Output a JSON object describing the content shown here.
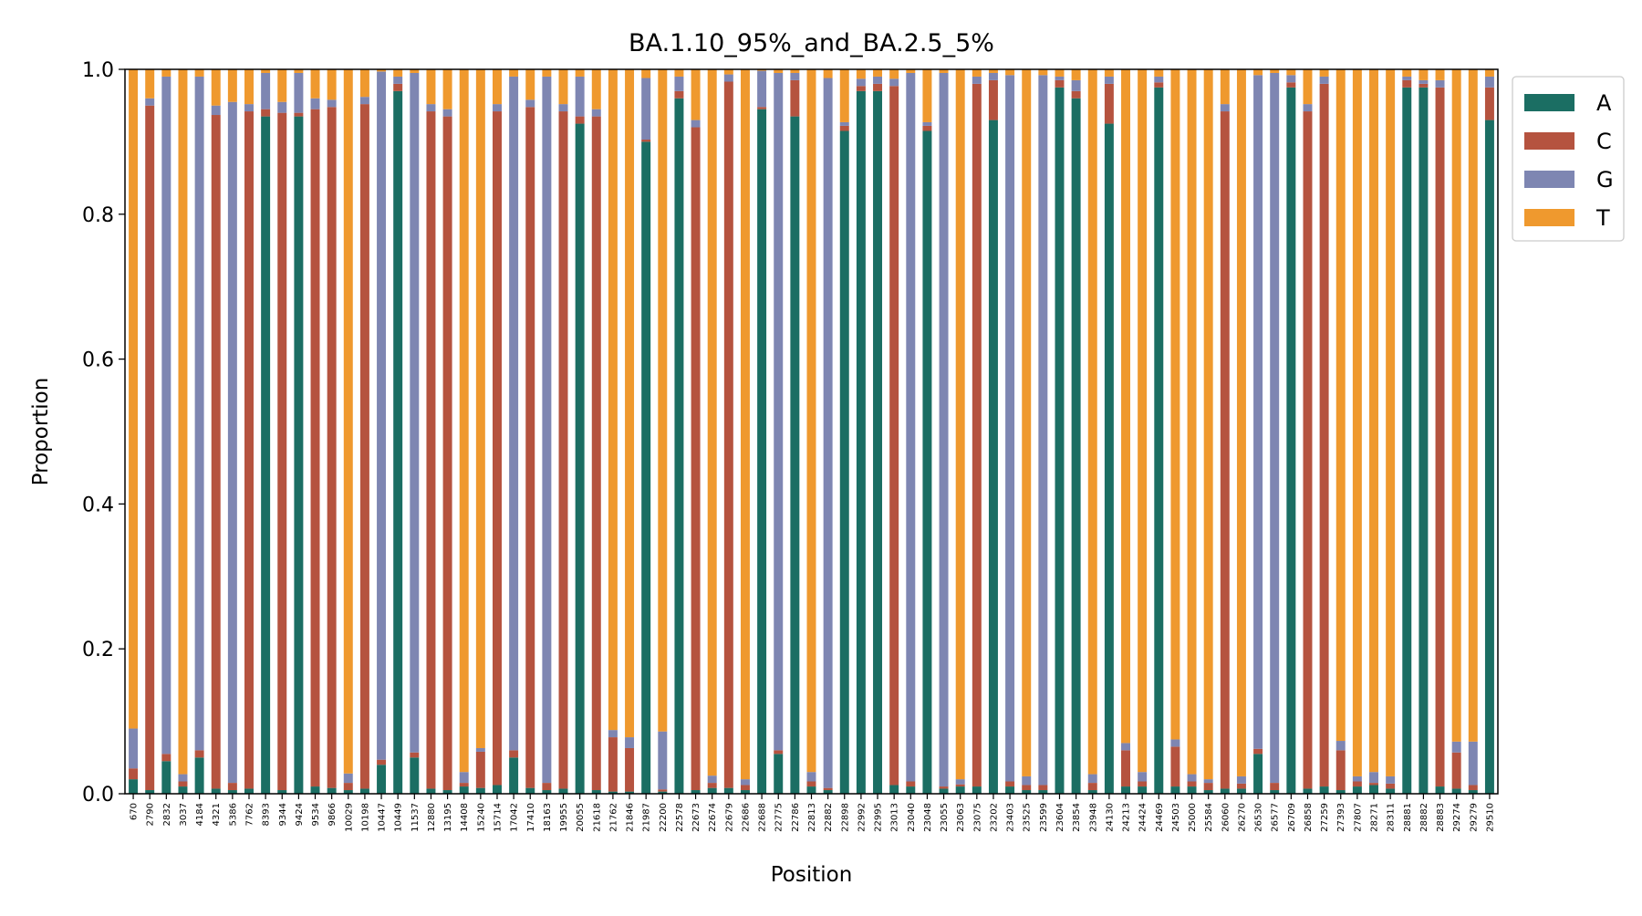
{
  "chart_data": {
    "type": "bar",
    "stacked": true,
    "title": "BA.1.10_95%_and_BA.2.5_5%",
    "xlabel": "Position",
    "ylabel": "Proportion",
    "ylim": [
      0,
      1
    ],
    "yticks": [
      "0.0",
      "0.2",
      "0.4",
      "0.6",
      "0.8",
      "1.0"
    ],
    "grid": false,
    "legend_position": "top-right, outside plot",
    "categories": [
      "670",
      "2790",
      "2832",
      "3037",
      "4184",
      "4321",
      "5386",
      "7762",
      "8393",
      "9344",
      "9424",
      "9534",
      "9866",
      "10029",
      "10198",
      "10447",
      "10449",
      "11537",
      "12880",
      "13195",
      "14408",
      "15240",
      "15714",
      "17042",
      "17410",
      "18163",
      "19955",
      "20055",
      "21618",
      "21762",
      "21846",
      "21987",
      "22200",
      "22578",
      "22673",
      "22674",
      "22679",
      "22686",
      "22688",
      "22775",
      "22786",
      "22813",
      "22882",
      "22898",
      "22992",
      "22995",
      "23013",
      "23040",
      "23048",
      "23055",
      "23063",
      "23075",
      "23202",
      "23403",
      "23525",
      "23599",
      "23604",
      "23854",
      "23948",
      "24130",
      "24213",
      "24424",
      "24469",
      "24503",
      "25000",
      "25584",
      "26060",
      "26270",
      "26530",
      "26577",
      "26709",
      "26858",
      "27259",
      "27393",
      "27807",
      "28271",
      "28311",
      "28881",
      "28882",
      "28883",
      "29274",
      "29279",
      "29510"
    ],
    "series": [
      {
        "name": "A",
        "color": "#1b6e63",
        "values": [
          0.02,
          0.005,
          0.045,
          0.01,
          0.05,
          0.007,
          0.005,
          0.007,
          0.935,
          0.005,
          0.935,
          0.01,
          0.008,
          0.005,
          0.007,
          0.04,
          0.97,
          0.05,
          0.007,
          0.005,
          0.01,
          0.008,
          0.012,
          0.05,
          0.008,
          0.005,
          0.007,
          0.925,
          0.005,
          0.003,
          0.003,
          0.9,
          0.003,
          0.96,
          0.005,
          0.008,
          0.008,
          0.005,
          0.945,
          0.055,
          0.935,
          0.01,
          0.005,
          0.915,
          0.97,
          0.97,
          0.012,
          0.01,
          0.915,
          0.007,
          0.01,
          0.01,
          0.93,
          0.01,
          0.005,
          0.005,
          0.975,
          0.96,
          0.005,
          0.925,
          0.01,
          0.01,
          0.975,
          0.01,
          0.01,
          0.005,
          0.007,
          0.007,
          0.055,
          0.005,
          0.975,
          0.007,
          0.01,
          0.005,
          0.01,
          0.012,
          0.007,
          0.975,
          0.975,
          0.01,
          0.007,
          0.005,
          0.93
        ]
      },
      {
        "name": "C",
        "color": "#b5533f",
        "values": [
          0.015,
          0.945,
          0.01,
          0.007,
          0.01,
          0.93,
          0.01,
          0.935,
          0.01,
          0.935,
          0.005,
          0.935,
          0.94,
          0.01,
          0.945,
          0.007,
          0.01,
          0.007,
          0.935,
          0.93,
          0.005,
          0.05,
          0.93,
          0.01,
          0.94,
          0.01,
          0.935,
          0.01,
          0.93,
          0.075,
          0.06,
          0.003,
          0.003,
          0.01,
          0.915,
          0.007,
          0.975,
          0.007,
          0.003,
          0.005,
          0.05,
          0.007,
          0.003,
          0.007,
          0.007,
          0.01,
          0.965,
          0.007,
          0.007,
          0.003,
          0.003,
          0.97,
          0.055,
          0.007,
          0.007,
          0.007,
          0.01,
          0.01,
          0.01,
          0.055,
          0.05,
          0.007,
          0.007,
          0.055,
          0.007,
          0.01,
          0.935,
          0.007,
          0.007,
          0.01,
          0.007,
          0.935,
          0.97,
          0.055,
          0.007,
          0.003,
          0.007,
          0.01,
          0.005,
          0.965,
          0.05,
          0.007,
          0.045
        ]
      },
      {
        "name": "G",
        "color": "#7e86b2",
        "values": [
          0.055,
          0.01,
          0.935,
          0.01,
          0.93,
          0.013,
          0.94,
          0.01,
          0.05,
          0.015,
          0.055,
          0.015,
          0.01,
          0.013,
          0.01,
          0.95,
          0.01,
          0.938,
          0.01,
          0.01,
          0.015,
          0.005,
          0.01,
          0.93,
          0.01,
          0.975,
          0.01,
          0.055,
          0.01,
          0.01,
          0.015,
          0.085,
          0.08,
          0.02,
          0.01,
          0.01,
          0.01,
          0.008,
          0.05,
          0.935,
          0.01,
          0.013,
          0.98,
          0.005,
          0.01,
          0.01,
          0.01,
          0.978,
          0.005,
          0.985,
          0.007,
          0.01,
          0.01,
          0.975,
          0.012,
          0.98,
          0.005,
          0.015,
          0.012,
          0.01,
          0.01,
          0.013,
          0.008,
          0.01,
          0.01,
          0.005,
          0.01,
          0.01,
          0.93,
          0.98,
          0.01,
          0.01,
          0.01,
          0.013,
          0.007,
          0.015,
          0.01,
          0.005,
          0.005,
          0.01,
          0.015,
          0.06,
          0.015
        ]
      },
      {
        "name": "T",
        "color": "#ef992e",
        "values": [
          0.91,
          0.04,
          0.01,
          0.973,
          0.01,
          0.05,
          0.045,
          0.048,
          0.005,
          0.045,
          0.005,
          0.04,
          0.042,
          0.972,
          0.038,
          0.003,
          0.01,
          0.005,
          0.048,
          0.055,
          0.97,
          0.937,
          0.048,
          0.01,
          0.042,
          0.01,
          0.048,
          0.01,
          0.055,
          0.912,
          0.922,
          0.012,
          0.914,
          0.01,
          0.07,
          0.975,
          0.007,
          0.98,
          0.002,
          0.005,
          0.005,
          0.97,
          0.012,
          0.073,
          0.013,
          0.01,
          0.013,
          0.005,
          0.073,
          0.005,
          0.98,
          0.01,
          0.005,
          0.008,
          0.976,
          0.008,
          0.01,
          0.015,
          0.973,
          0.01,
          0.93,
          0.97,
          0.01,
          0.925,
          0.973,
          0.98,
          0.048,
          0.976,
          0.008,
          0.005,
          0.008,
          0.048,
          0.01,
          0.927,
          0.976,
          0.97,
          0.976,
          0.01,
          0.015,
          0.015,
          0.928,
          0.928,
          0.01
        ]
      }
    ]
  }
}
